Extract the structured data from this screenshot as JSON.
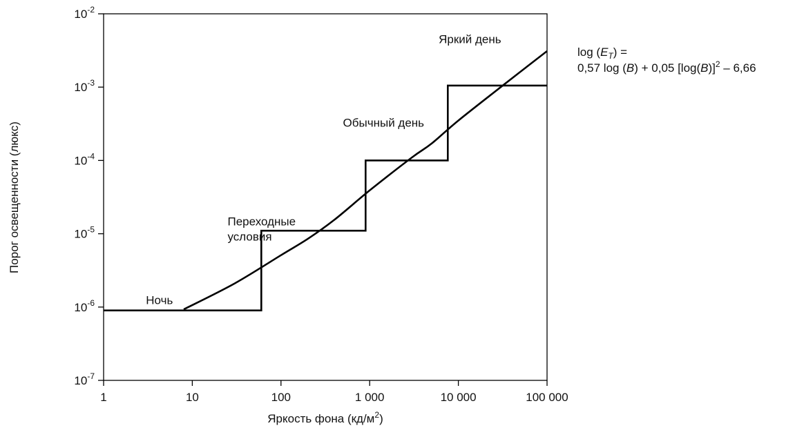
{
  "chart_data": {
    "type": "line",
    "title": "",
    "xlabel": "Яркость фона (кд/м",
    "xlabel_sup": "2",
    "xlabel_end": ")",
    "ylabel": "Порог освещенности (люкс)",
    "x_scale": "log",
    "y_scale": "log",
    "xlim": [
      1,
      100000
    ],
    "ylim": [
      1e-07,
      0.01
    ],
    "grid": false,
    "x_ticks": [
      {
        "value": 1,
        "label": "1"
      },
      {
        "value": 10,
        "label": "10"
      },
      {
        "value": 100,
        "label": "100"
      },
      {
        "value": 1000,
        "label": "1 000"
      },
      {
        "value": 10000,
        "label": "10 000"
      },
      {
        "value": 100000,
        "label": "100 000"
      }
    ],
    "y_ticks": [
      {
        "value": 1e-07,
        "base": "10",
        "exp": "-7"
      },
      {
        "value": 1e-06,
        "base": "10",
        "exp": "-6"
      },
      {
        "value": 1e-05,
        "base": "10",
        "exp": "-5"
      },
      {
        "value": 0.0001,
        "base": "10",
        "exp": "-4"
      },
      {
        "value": 0.001,
        "base": "10",
        "exp": "-3"
      },
      {
        "value": 0.01,
        "base": "10",
        "exp": "-2"
      }
    ],
    "series": [
      {
        "kind": "step",
        "points": [
          {
            "x": 1,
            "y": 9e-07
          },
          {
            "x": 60,
            "y": 9e-07
          },
          {
            "x": 60,
            "y": 1.1e-05
          },
          {
            "x": 900,
            "y": 1.1e-05
          },
          {
            "x": 900,
            "y": 0.0001
          },
          {
            "x": 7600,
            "y": 0.0001
          },
          {
            "x": 7600,
            "y": 0.00105
          },
          {
            "x": 100000,
            "y": 0.00105
          }
        ]
      },
      {
        "kind": "curve",
        "points": [
          {
            "x": 8,
            "y": 9.3e-07
          },
          {
            "x": 30,
            "y": 2.1e-06
          },
          {
            "x": 100,
            "y": 5.1e-06
          },
          {
            "x": 200,
            "y": 8.5e-06
          },
          {
            "x": 400,
            "y": 1.55e-05
          },
          {
            "x": 1000,
            "y": 3.9e-05
          },
          {
            "x": 3000,
            "y": 0.00011
          },
          {
            "x": 5000,
            "y": 0.00017
          },
          {
            "x": 10000,
            "y": 0.00035
          },
          {
            "x": 30000,
            "y": 0.001
          },
          {
            "x": 100000,
            "y": 0.0031
          }
        ]
      }
    ],
    "annotations": [
      {
        "lines": [
          "Ночь"
        ],
        "x": 3,
        "y": 1.1e-06
      },
      {
        "lines": [
          "Переходные",
          "условия"
        ],
        "x": 25,
        "y": 1.3e-05
      },
      {
        "lines": [
          "Обычный день"
        ],
        "x": 500,
        "y": 0.00029
      },
      {
        "lines": [
          "Яркий день"
        ],
        "x": 6000,
        "y": 0.004
      }
    ]
  },
  "formula": {
    "line1_prefix": "log (",
    "line1_var": "E",
    "line1_sub": "T",
    "line1_suffix": ") =",
    "line2_a": "0,57 log (",
    "line2_b_var": "B",
    "line2_c": ") + 0,05 [log(",
    "line2_d_var": "B",
    "line2_e": ")]",
    "line2_sup": "2",
    "line2_f": " – 6,66"
  }
}
